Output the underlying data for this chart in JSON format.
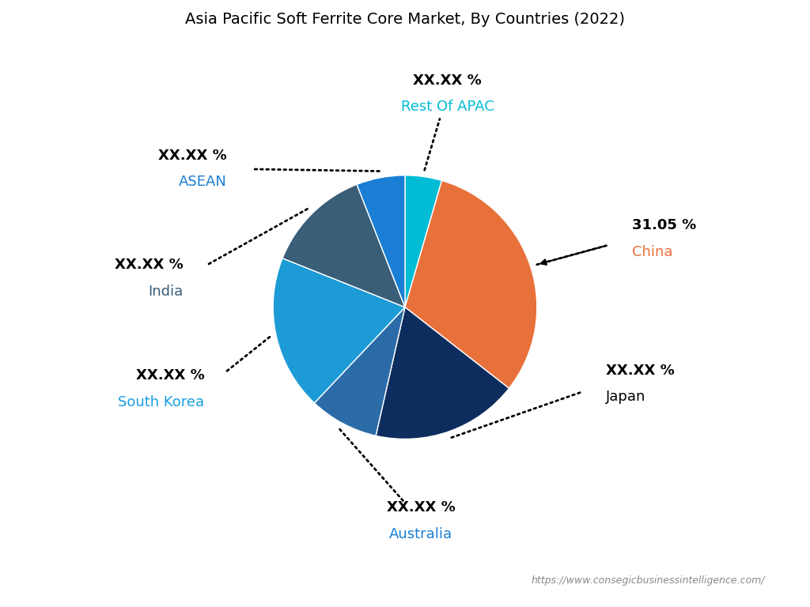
{
  "title": "Asia Pacific Soft Ferrite Core Market, By Countries (2022)",
  "segments": [
    {
      "label": "Rest Of APAC",
      "value": 4.5,
      "display": "XX.XX %",
      "color": "#00BCD4"
    },
    {
      "label": "China",
      "value": 31.05,
      "display": "31.05 %",
      "color": "#E8703A"
    },
    {
      "label": "Japan",
      "value": 18.0,
      "display": "XX.XX %",
      "color": "#0D2D5E"
    },
    {
      "label": "Australia",
      "value": 8.5,
      "display": "XX.XX %",
      "color": "#2B6BA8"
    },
    {
      "label": "South Korea",
      "value": 19.0,
      "display": "XX.XX %",
      "color": "#1C9BD6"
    },
    {
      "label": "India",
      "value": 13.0,
      "display": "XX.XX %",
      "color": "#3A5D78"
    },
    {
      "label": "ASEAN",
      "value": 5.95,
      "display": "XX.XX %",
      "color": "#1A7FD4"
    }
  ],
  "label_colors": {
    "China": "#E8703A",
    "Japan": "#000000",
    "Australia": "#1A7FD4",
    "South Korea": "#1A9EE0",
    "India": "#3A5D78",
    "ASEAN": "#1A7FD4",
    "Rest Of APAC": "#00BCD4"
  },
  "startangle": 90,
  "background_color": "#FFFFFF",
  "title_fontsize": 14,
  "website": "https://www.consegicbusinessintelligence.com/"
}
